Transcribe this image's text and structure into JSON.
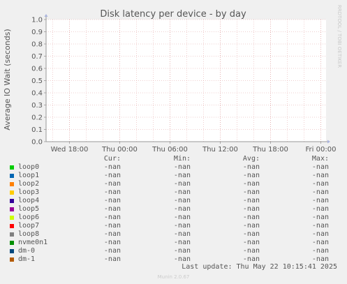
{
  "chart_data": {
    "type": "line",
    "title": "Disk latency per device - by day",
    "ylabel": "Average IO Wait (seconds)",
    "ylim": [
      0,
      1.0
    ],
    "yticks": [
      "0.0",
      "0.1",
      "0.2",
      "0.3",
      "0.4",
      "0.5",
      "0.6",
      "0.7",
      "0.8",
      "0.9",
      "1.0"
    ],
    "xticks": [
      "Wed 18:00",
      "Thu 00:00",
      "Thu 06:00",
      "Thu 12:00",
      "Thu 18:00",
      "Fri 00:00"
    ],
    "watermark": "RRDTOOL / TOBI OETIKER",
    "grid": true,
    "series": []
  },
  "legend": {
    "headers": {
      "cur": "Cur:",
      "min": "Min:",
      "avg": "Avg:",
      "max": "Max:"
    },
    "items": [
      {
        "name": "loop0",
        "color": "#00cc00",
        "cur": "-nan",
        "min": "-nan",
        "avg": "-nan",
        "max": "-nan"
      },
      {
        "name": "loop1",
        "color": "#0066b3",
        "cur": "-nan",
        "min": "-nan",
        "avg": "-nan",
        "max": "-nan"
      },
      {
        "name": "loop2",
        "color": "#ff8000",
        "cur": "-nan",
        "min": "-nan",
        "avg": "-nan",
        "max": "-nan"
      },
      {
        "name": "loop3",
        "color": "#ffcc00",
        "cur": "-nan",
        "min": "-nan",
        "avg": "-nan",
        "max": "-nan"
      },
      {
        "name": "loop4",
        "color": "#330099",
        "cur": "-nan",
        "min": "-nan",
        "avg": "-nan",
        "max": "-nan"
      },
      {
        "name": "loop5",
        "color": "#990099",
        "cur": "-nan",
        "min": "-nan",
        "avg": "-nan",
        "max": "-nan"
      },
      {
        "name": "loop6",
        "color": "#ccff00",
        "cur": "-nan",
        "min": "-nan",
        "avg": "-nan",
        "max": "-nan"
      },
      {
        "name": "loop7",
        "color": "#ff0000",
        "cur": "-nan",
        "min": "-nan",
        "avg": "-nan",
        "max": "-nan"
      },
      {
        "name": "loop8",
        "color": "#808080",
        "cur": "-nan",
        "min": "-nan",
        "avg": "-nan",
        "max": "-nan"
      },
      {
        "name": "nvme0n1",
        "color": "#008f00",
        "cur": "-nan",
        "min": "-nan",
        "avg": "-nan",
        "max": "-nan"
      },
      {
        "name": "dm-0",
        "color": "#00487d",
        "cur": "-nan",
        "min": "-nan",
        "avg": "-nan",
        "max": "-nan"
      },
      {
        "name": "dm-1",
        "color": "#b35a00",
        "cur": "-nan",
        "min": "-nan",
        "avg": "-nan",
        "max": "-nan"
      }
    ]
  },
  "footer": {
    "last_update": "Last update: Thu May 22 10:15:41 2025",
    "version": "Munin 2.0.67"
  }
}
